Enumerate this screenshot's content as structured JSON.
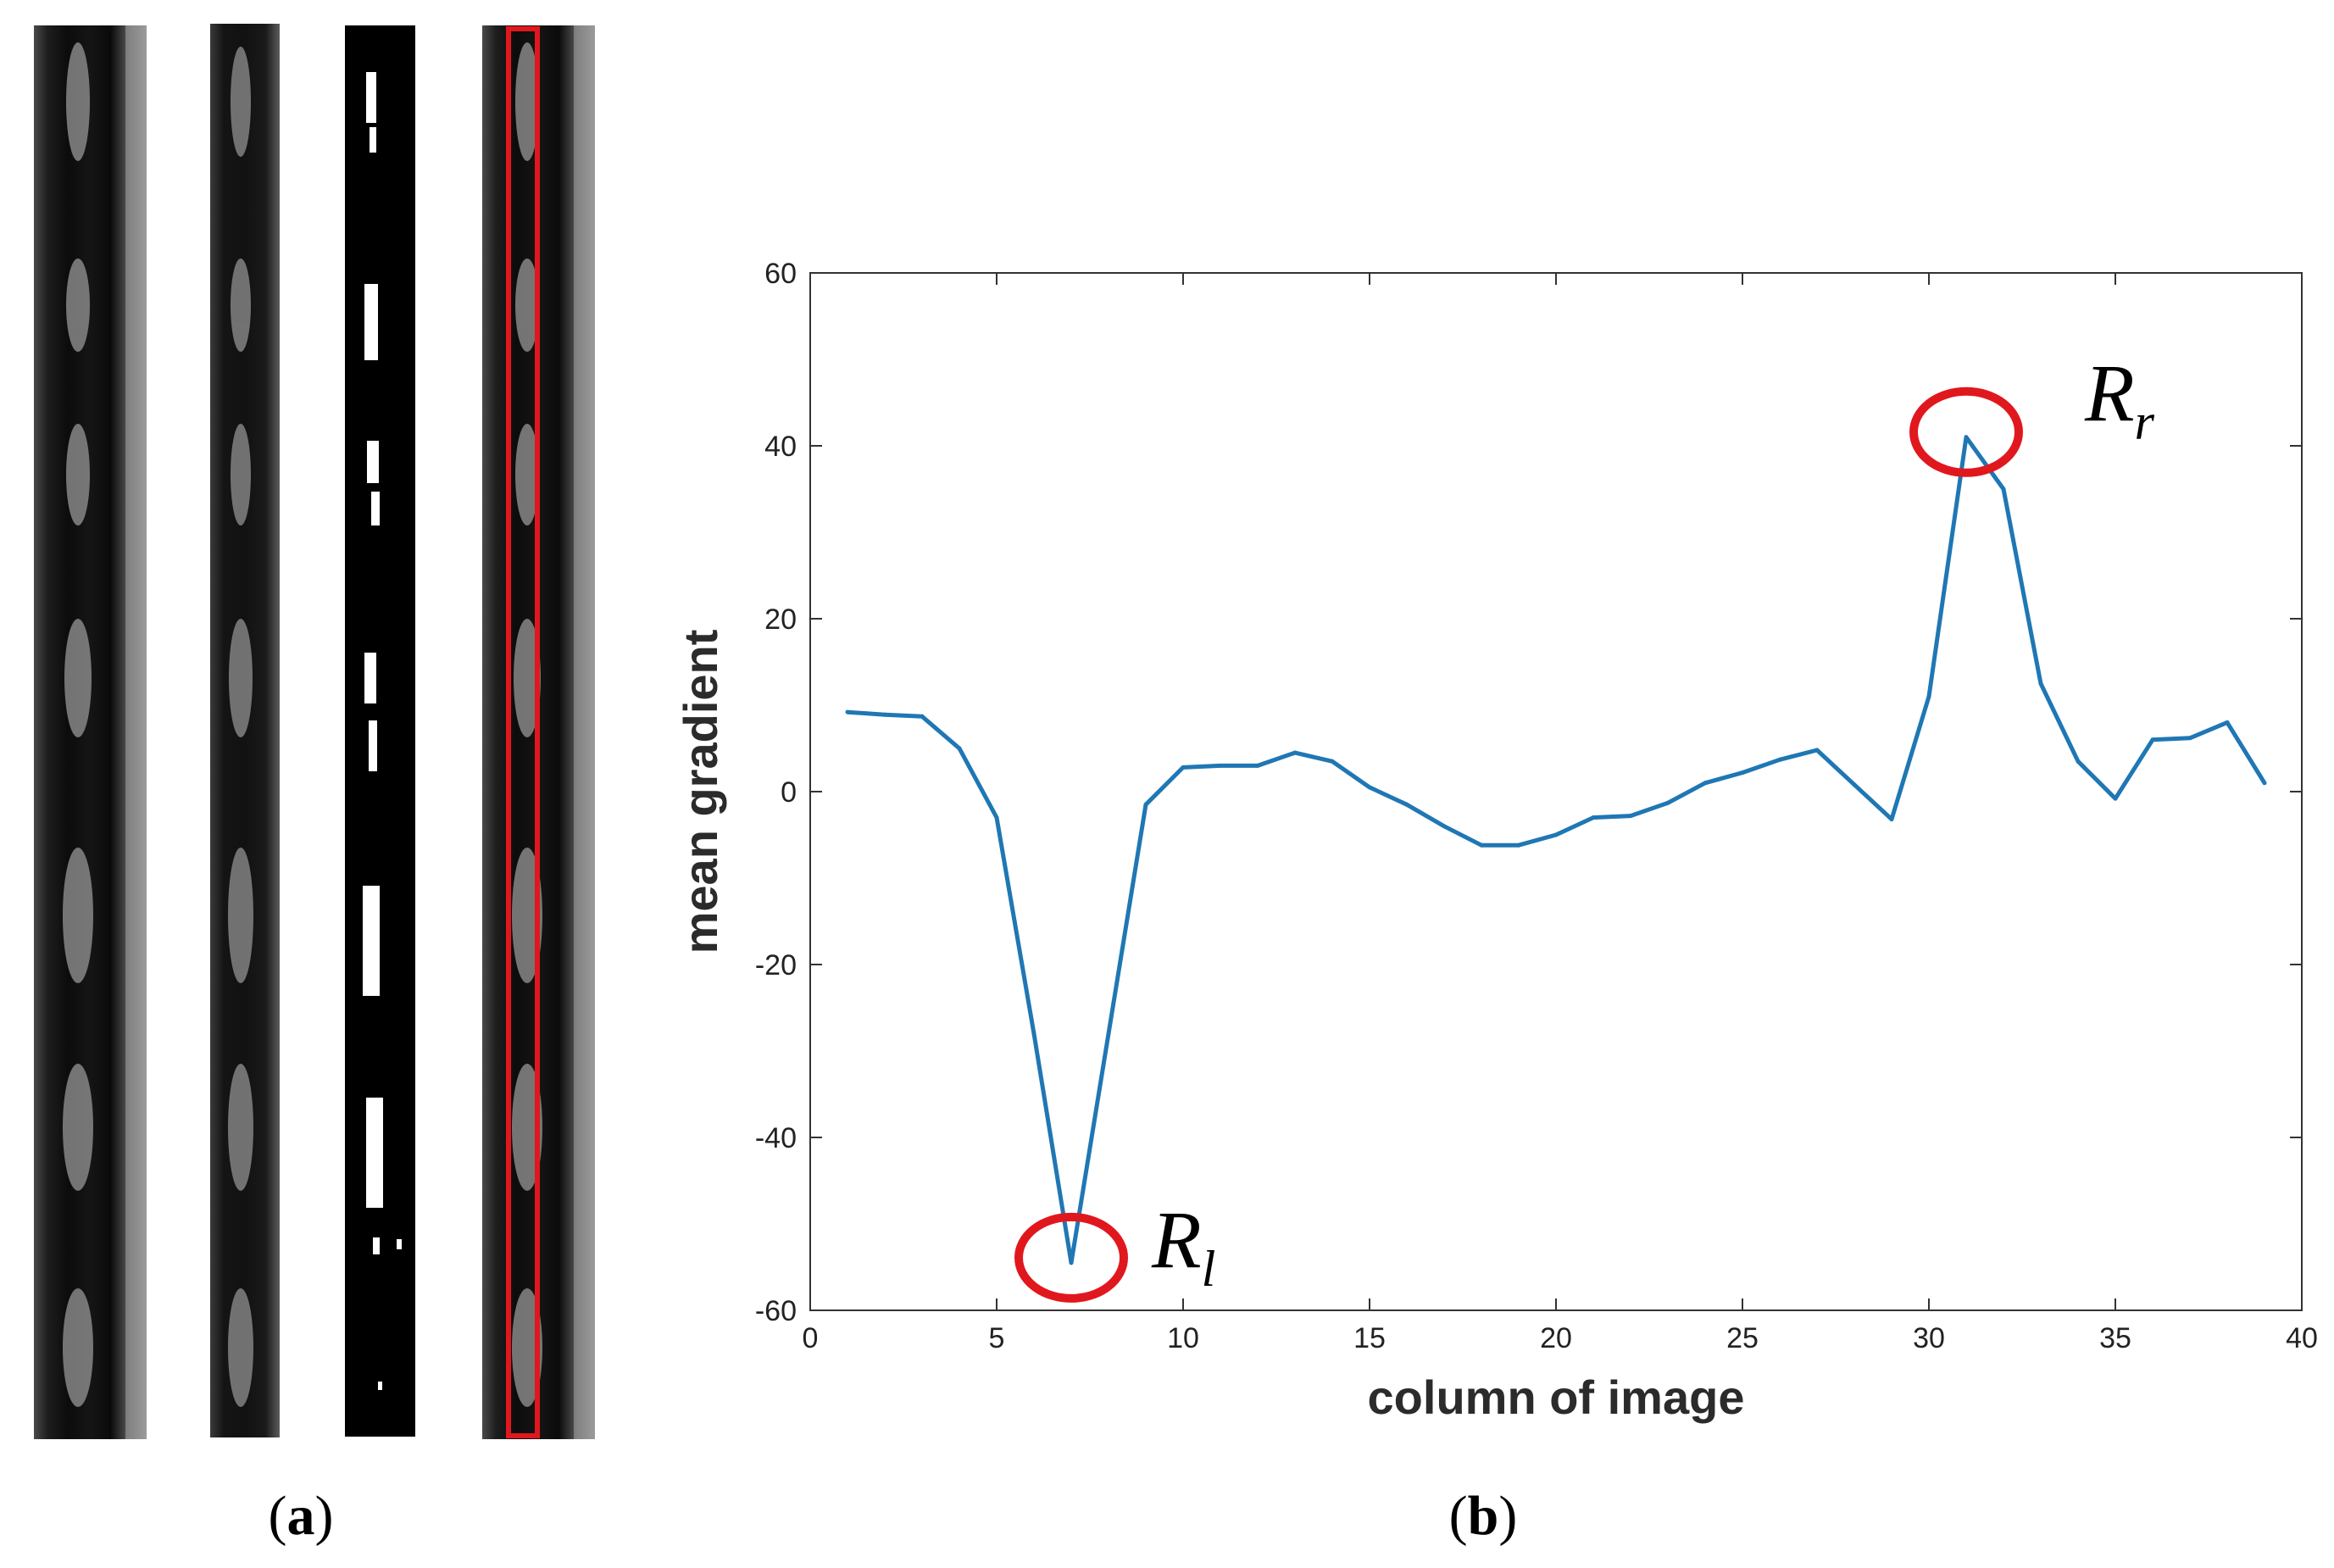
{
  "panel_a": {
    "label_open": "(",
    "label_letter": "a",
    "label_close": ")",
    "strip_count": 4,
    "highlight_color": "#e0181e"
  },
  "panel_b": {
    "label_open": "(",
    "label_letter": "b",
    "label_close": ")"
  },
  "chart_data": {
    "type": "line",
    "xlabel": "column of image",
    "ylabel": "mean gradient",
    "xlim": [
      0,
      40
    ],
    "ylim": [
      -60,
      60
    ],
    "xticks": [
      0,
      5,
      10,
      15,
      20,
      25,
      30,
      35,
      40
    ],
    "yticks": [
      -60,
      -40,
      -20,
      0,
      20,
      40,
      60
    ],
    "grid": false,
    "series": [
      {
        "color": "#1f77b4",
        "x": [
          1,
          2,
          3,
          4,
          5,
          6,
          7,
          8,
          9,
          10,
          11,
          12,
          13,
          14,
          15,
          16,
          17,
          18,
          19,
          20,
          21,
          22,
          23,
          24,
          25,
          26,
          27,
          28,
          29,
          30,
          31,
          32,
          33,
          34,
          35,
          36,
          37,
          38,
          39
        ],
        "values": [
          9.2,
          8.9,
          8.7,
          5.0,
          -3.0,
          -28.0,
          -54.5,
          -28.0,
          -1.5,
          2.8,
          3.0,
          3.0,
          4.5,
          3.5,
          0.5,
          -1.5,
          -4.0,
          -6.2,
          -6.2,
          -5.0,
          -3.0,
          -2.8,
          -1.3,
          1.0,
          2.2,
          3.7,
          4.8,
          0.8,
          -3.2,
          11.0,
          41.0,
          35.0,
          12.5,
          3.5,
          -0.8,
          6.0,
          6.2,
          8.0,
          1.0
        ]
      }
    ],
    "annotations": [
      {
        "base": "R",
        "sub": "l",
        "x": 7,
        "y": -54.5,
        "marker_color": "#e0181e"
      },
      {
        "base": "R",
        "sub": "r",
        "x": 31,
        "y": 41.0,
        "marker_color": "#e0181e"
      }
    ]
  }
}
